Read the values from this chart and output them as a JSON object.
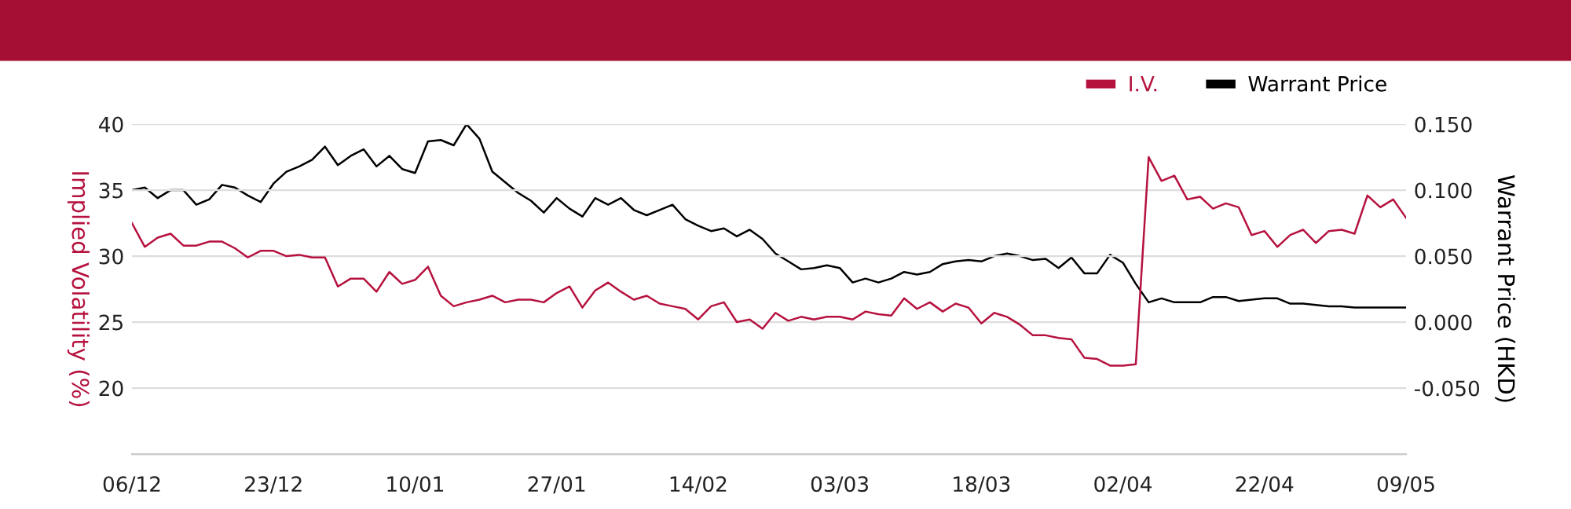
{
  "chart_data": {
    "type": "line",
    "categories": [
      "06/12",
      null,
      null,
      null,
      null,
      null,
      null,
      null,
      null,
      null,
      null,
      "23/12",
      null,
      null,
      null,
      null,
      null,
      null,
      null,
      null,
      null,
      null,
      "10/01",
      null,
      null,
      null,
      null,
      null,
      null,
      null,
      null,
      null,
      null,
      "27/01",
      null,
      null,
      null,
      null,
      null,
      null,
      null,
      null,
      null,
      null,
      "14/02",
      null,
      null,
      null,
      null,
      null,
      null,
      null,
      null,
      null,
      null,
      "03/03",
      null,
      null,
      null,
      null,
      null,
      null,
      null,
      null,
      null,
      null,
      "18/03",
      null,
      null,
      null,
      null,
      null,
      null,
      null,
      null,
      null,
      null,
      "02/04",
      null,
      null,
      null,
      null,
      null,
      null,
      null,
      null,
      null,
      null,
      "22/04",
      null,
      null,
      null,
      null,
      null,
      null,
      null,
      null,
      null,
      null,
      "09/05"
    ],
    "series": [
      {
        "name": "I.V.",
        "color": "#b5123e",
        "values": [
          32.5,
          30.7,
          31.4,
          31.7,
          30.8,
          30.8,
          31.1,
          31.1,
          30.6,
          29.9,
          30.4,
          30.4,
          30.0,
          30.1,
          29.9,
          29.9,
          27.7,
          28.3,
          28.3,
          27.3,
          28.8,
          27.9,
          28.2,
          29.2,
          27.0,
          26.2,
          26.5,
          26.7,
          27.0,
          26.5,
          26.7,
          26.7,
          26.5,
          27.2,
          27.7,
          26.1,
          27.4,
          28.0,
          27.3,
          26.7,
          27.0,
          26.4,
          26.2,
          26.0,
          25.2,
          26.2,
          26.5,
          25.0,
          25.2,
          24.5,
          25.7,
          25.1,
          25.4,
          25.2,
          25.4,
          25.4,
          25.2,
          25.8,
          25.6,
          25.5,
          26.8,
          26.0,
          26.5,
          25.8,
          26.4,
          26.1,
          24.9,
          25.7,
          25.4,
          24.8,
          24.0,
          24.0,
          23.8,
          23.7,
          22.3,
          22.2,
          21.7,
          21.7,
          21.8,
          37.5,
          35.7,
          36.1,
          34.3,
          34.5,
          33.6,
          34.0,
          33.7,
          31.6,
          31.9,
          30.7,
          31.6,
          32.0,
          31.0,
          31.9,
          32.0,
          31.7,
          34.6,
          33.7,
          34.3,
          32.9
        ]
      },
      {
        "name": "Warrant Price",
        "color": "#000000",
        "axis": "y2",
        "values": [
          0.1,
          0.102,
          0.094,
          0.1,
          0.1,
          0.089,
          0.093,
          0.104,
          0.102,
          0.096,
          0.091,
          0.105,
          0.114,
          0.118,
          0.123,
          0.133,
          0.119,
          0.126,
          0.131,
          0.118,
          0.126,
          0.116,
          0.113,
          0.137,
          0.138,
          0.134,
          0.15,
          0.139,
          0.114,
          0.106,
          0.098,
          0.092,
          0.083,
          0.094,
          0.086,
          0.08,
          0.094,
          0.089,
          0.094,
          0.085,
          0.081,
          0.085,
          0.089,
          0.078,
          0.073,
          0.069,
          0.071,
          0.065,
          0.07,
          0.063,
          0.052,
          0.046,
          0.04,
          0.041,
          0.043,
          0.041,
          0.03,
          0.033,
          0.03,
          0.033,
          0.038,
          0.036,
          0.038,
          0.044,
          0.046,
          0.047,
          0.046,
          0.05,
          0.052,
          0.05,
          0.047,
          0.048,
          0.041,
          0.049,
          0.037,
          0.037,
          0.051,
          0.045,
          0.029,
          0.015,
          0.018,
          0.015,
          0.015,
          0.015,
          0.019,
          0.019,
          0.016,
          0.017,
          0.018,
          0.018,
          0.014,
          0.014,
          0.013,
          0.012,
          0.012,
          0.011,
          0.011,
          0.011,
          0.011,
          0.011
        ]
      }
    ],
    "ylabel": "Implied Volatility (%)",
    "y2label": "Warrant Price (HKD)",
    "ylim": [
      15,
      40
    ],
    "yticks": [
      20,
      25,
      30,
      35,
      40
    ],
    "y2lim": [
      -0.1,
      0.15
    ],
    "y2ticks": [
      {
        "value": -0.05,
        "label": "-0.050"
      },
      {
        "value": 0,
        "label": "0.000"
      },
      {
        "value": 0.05,
        "label": "0.050"
      },
      {
        "value": 0.1,
        "label": "0.100"
      },
      {
        "value": 0.15,
        "label": "0.150"
      }
    ],
    "grid": "y",
    "legend": "top right",
    "marker": "none",
    "line_style": "solid"
  }
}
